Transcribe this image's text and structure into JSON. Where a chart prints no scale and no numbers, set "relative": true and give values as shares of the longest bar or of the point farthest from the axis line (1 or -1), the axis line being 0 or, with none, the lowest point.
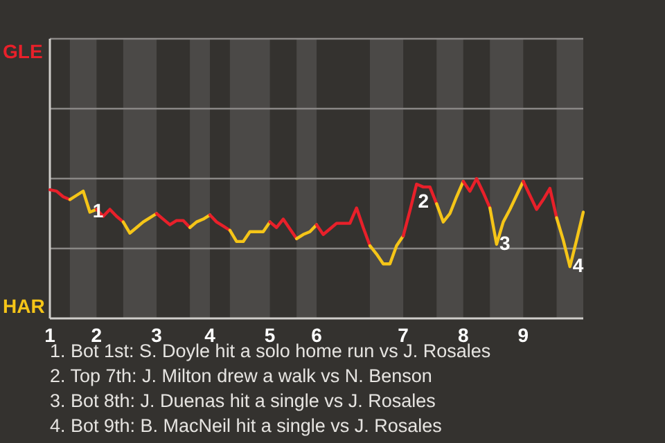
{
  "chart_data": {
    "type": "line",
    "relative": true,
    "marker": "none",
    "categories": [
      "1",
      null,
      null,
      null,
      null,
      null,
      null,
      "2",
      null,
      null,
      null,
      null,
      null,
      null,
      null,
      null,
      "3",
      null,
      null,
      null,
      null,
      null,
      null,
      null,
      "4",
      null,
      null,
      null,
      null,
      null,
      null,
      null,
      null,
      "5",
      null,
      null,
      null,
      null,
      null,
      null,
      "6",
      null,
      null,
      null,
      null,
      null,
      null,
      null,
      null,
      null,
      null,
      null,
      null,
      "7",
      null,
      null,
      null,
      null,
      null,
      null,
      null,
      null,
      "8",
      null,
      null,
      null,
      null,
      null,
      null,
      null,
      null,
      "9",
      null,
      null,
      null,
      null,
      null,
      null,
      null,
      null,
      null
    ],
    "series": [
      {
        "color": "#e8202a",
        "values": [
          0.92,
          0.91,
          0.87,
          0.85,
          null,
          null,
          null,
          null,
          null,
          null,
          null,
          null,
          null,
          null,
          null,
          null,
          null,
          null,
          null,
          null,
          null,
          null,
          null,
          null,
          null,
          null,
          null,
          null,
          null,
          null,
          null,
          null,
          null,
          null,
          null,
          null,
          null,
          null,
          null,
          null,
          null,
          null,
          null,
          null,
          null,
          null,
          null,
          null,
          null,
          null,
          null,
          null,
          null,
          null,
          null,
          null,
          null,
          null,
          null,
          null,
          null,
          null,
          null,
          null,
          null,
          null,
          null,
          null,
          null,
          null,
          null,
          null,
          null,
          null,
          null,
          null,
          null,
          null,
          null,
          null,
          null
        ]
      },
      {
        "color": "#f5c518",
        "values": [
          null,
          null,
          null,
          0.85,
          0.88,
          0.91,
          0.76,
          0.78,
          null,
          null,
          null,
          null,
          null,
          null,
          null,
          null,
          null,
          null,
          null,
          null,
          null,
          null,
          null,
          null,
          null,
          null,
          null,
          null,
          null,
          null,
          null,
          null,
          null,
          null,
          null,
          null,
          null,
          null,
          null,
          null,
          null,
          null,
          null,
          null,
          null,
          null,
          null,
          null,
          null,
          null,
          null,
          null,
          null,
          null,
          null,
          null,
          null,
          null,
          null,
          null,
          null,
          null,
          null,
          null,
          null,
          null,
          null,
          null,
          null,
          null,
          null,
          null,
          null,
          null,
          null,
          null,
          null,
          null,
          null,
          null,
          null
        ]
      },
      {
        "color": "#e8202a",
        "values": [
          null,
          null,
          null,
          null,
          null,
          null,
          null,
          0.78,
          0.73,
          0.78,
          0.73,
          0.69,
          null,
          null,
          null,
          null,
          null,
          null,
          null,
          null,
          null,
          null,
          null,
          null,
          null,
          null,
          null,
          null,
          null,
          null,
          null,
          null,
          null,
          null,
          null,
          null,
          null,
          null,
          null,
          null,
          null,
          null,
          null,
          null,
          null,
          null,
          null,
          null,
          null,
          null,
          null,
          null,
          null,
          null,
          null,
          null,
          null,
          null,
          null,
          null,
          null,
          null,
          null,
          null,
          null,
          null,
          null,
          null,
          null,
          null,
          null,
          null,
          null,
          null,
          null,
          null,
          null,
          null,
          null,
          null,
          null
        ]
      },
      {
        "color": "#f5c518",
        "values": [
          null,
          null,
          null,
          null,
          null,
          null,
          null,
          null,
          null,
          null,
          null,
          0.69,
          0.61,
          0.65,
          0.69,
          0.72,
          0.75,
          null,
          null,
          null,
          null,
          null,
          null,
          null,
          null,
          null,
          null,
          null,
          null,
          null,
          null,
          null,
          null,
          null,
          null,
          null,
          null,
          null,
          null,
          null,
          null,
          null,
          null,
          null,
          null,
          null,
          null,
          null,
          null,
          null,
          null,
          null,
          null,
          null,
          null,
          null,
          null,
          null,
          null,
          null,
          null,
          null,
          null,
          null,
          null,
          null,
          null,
          null,
          null,
          null,
          null,
          null,
          null,
          null,
          null,
          null,
          null,
          null,
          null,
          null,
          null
        ]
      },
      {
        "color": "#e8202a",
        "values": [
          null,
          null,
          null,
          null,
          null,
          null,
          null,
          null,
          null,
          null,
          null,
          null,
          null,
          null,
          null,
          null,
          0.75,
          0.71,
          0.67,
          0.7,
          0.7,
          0.65,
          null,
          null,
          null,
          null,
          null,
          null,
          null,
          null,
          null,
          null,
          null,
          null,
          null,
          null,
          null,
          null,
          null,
          null,
          null,
          null,
          null,
          null,
          null,
          null,
          null,
          null,
          null,
          null,
          null,
          null,
          null,
          null,
          null,
          null,
          null,
          null,
          null,
          null,
          null,
          null,
          null,
          null,
          null,
          null,
          null,
          null,
          null,
          null,
          null,
          null,
          null,
          null,
          null,
          null,
          null,
          null,
          null,
          null,
          null
        ]
      },
      {
        "color": "#f5c518",
        "values": [
          null,
          null,
          null,
          null,
          null,
          null,
          null,
          null,
          null,
          null,
          null,
          null,
          null,
          null,
          null,
          null,
          null,
          null,
          null,
          null,
          null,
          0.65,
          0.69,
          0.71,
          0.74,
          null,
          null,
          null,
          null,
          null,
          null,
          null,
          null,
          null,
          null,
          null,
          null,
          null,
          null,
          null,
          null,
          null,
          null,
          null,
          null,
          null,
          null,
          null,
          null,
          null,
          null,
          null,
          null,
          null,
          null,
          null,
          null,
          null,
          null,
          null,
          null,
          null,
          null,
          null,
          null,
          null,
          null,
          null,
          null,
          null,
          null,
          null,
          null,
          null,
          null,
          null,
          null,
          null,
          null,
          null,
          null
        ]
      },
      {
        "color": "#e8202a",
        "values": [
          null,
          null,
          null,
          null,
          null,
          null,
          null,
          null,
          null,
          null,
          null,
          null,
          null,
          null,
          null,
          null,
          null,
          null,
          null,
          null,
          null,
          null,
          null,
          null,
          0.74,
          0.69,
          0.66,
          0.63,
          null,
          null,
          null,
          null,
          null,
          null,
          null,
          null,
          null,
          null,
          null,
          null,
          null,
          null,
          null,
          null,
          null,
          null,
          null,
          null,
          null,
          null,
          null,
          null,
          null,
          null,
          null,
          null,
          null,
          null,
          null,
          null,
          null,
          null,
          null,
          null,
          null,
          null,
          null,
          null,
          null,
          null,
          null,
          null,
          null,
          null,
          null,
          null,
          null,
          null,
          null,
          null,
          null
        ]
      },
      {
        "color": "#f5c518",
        "values": [
          null,
          null,
          null,
          null,
          null,
          null,
          null,
          null,
          null,
          null,
          null,
          null,
          null,
          null,
          null,
          null,
          null,
          null,
          null,
          null,
          null,
          null,
          null,
          null,
          null,
          null,
          null,
          0.63,
          0.55,
          0.55,
          0.62,
          0.62,
          0.62,
          0.69,
          null,
          null,
          null,
          null,
          null,
          null,
          null,
          null,
          null,
          null,
          null,
          null,
          null,
          null,
          null,
          null,
          null,
          null,
          null,
          null,
          null,
          null,
          null,
          null,
          null,
          null,
          null,
          null,
          null,
          null,
          null,
          null,
          null,
          null,
          null,
          null,
          null,
          null,
          null,
          null,
          null,
          null,
          null,
          null,
          null,
          null,
          null
        ]
      },
      {
        "color": "#e8202a",
        "values": [
          null,
          null,
          null,
          null,
          null,
          null,
          null,
          null,
          null,
          null,
          null,
          null,
          null,
          null,
          null,
          null,
          null,
          null,
          null,
          null,
          null,
          null,
          null,
          null,
          null,
          null,
          null,
          null,
          null,
          null,
          null,
          null,
          null,
          0.69,
          0.65,
          0.71,
          0.64,
          0.57,
          null,
          null,
          null,
          null,
          null,
          null,
          null,
          null,
          null,
          null,
          null,
          null,
          null,
          null,
          null,
          null,
          null,
          null,
          null,
          null,
          null,
          null,
          null,
          null,
          null,
          null,
          null,
          null,
          null,
          null,
          null,
          null,
          null,
          null,
          null,
          null,
          null,
          null,
          null,
          null,
          null,
          null,
          null
        ]
      },
      {
        "color": "#f5c518",
        "values": [
          null,
          null,
          null,
          null,
          null,
          null,
          null,
          null,
          null,
          null,
          null,
          null,
          null,
          null,
          null,
          null,
          null,
          null,
          null,
          null,
          null,
          null,
          null,
          null,
          null,
          null,
          null,
          null,
          null,
          null,
          null,
          null,
          null,
          null,
          null,
          null,
          null,
          0.57,
          0.6,
          0.62,
          0.67,
          null,
          null,
          null,
          null,
          null,
          null,
          null,
          null,
          null,
          null,
          null,
          null,
          null,
          null,
          null,
          null,
          null,
          null,
          null,
          null,
          null,
          null,
          null,
          null,
          null,
          null,
          null,
          null,
          null,
          null,
          null,
          null,
          null,
          null,
          null,
          null,
          null,
          null,
          null,
          null
        ]
      },
      {
        "color": "#e8202a",
        "values": [
          null,
          null,
          null,
          null,
          null,
          null,
          null,
          null,
          null,
          null,
          null,
          null,
          null,
          null,
          null,
          null,
          null,
          null,
          null,
          null,
          null,
          null,
          null,
          null,
          null,
          null,
          null,
          null,
          null,
          null,
          null,
          null,
          null,
          null,
          null,
          null,
          null,
          null,
          null,
          null,
          0.67,
          0.6,
          0.64,
          0.68,
          0.68,
          0.68,
          0.79,
          0.65,
          0.52,
          null,
          null,
          null,
          null,
          null,
          null,
          null,
          null,
          null,
          null,
          null,
          null,
          null,
          null,
          null,
          null,
          null,
          null,
          null,
          null,
          null,
          null,
          null,
          null,
          null,
          null,
          null,
          null,
          null,
          null,
          null,
          null
        ]
      },
      {
        "color": "#f5c518",
        "values": [
          null,
          null,
          null,
          null,
          null,
          null,
          null,
          null,
          null,
          null,
          null,
          null,
          null,
          null,
          null,
          null,
          null,
          null,
          null,
          null,
          null,
          null,
          null,
          null,
          null,
          null,
          null,
          null,
          null,
          null,
          null,
          null,
          null,
          null,
          null,
          null,
          null,
          null,
          null,
          null,
          null,
          null,
          null,
          null,
          null,
          null,
          null,
          null,
          0.52,
          0.46,
          0.39,
          0.39,
          0.52,
          0.59,
          null,
          null,
          null,
          null,
          null,
          null,
          null,
          null,
          null,
          null,
          null,
          null,
          null,
          null,
          null,
          null,
          null,
          null,
          null,
          null,
          null,
          null,
          null,
          null,
          null,
          null,
          null
        ]
      },
      {
        "color": "#e8202a",
        "values": [
          null,
          null,
          null,
          null,
          null,
          null,
          null,
          null,
          null,
          null,
          null,
          null,
          null,
          null,
          null,
          null,
          null,
          null,
          null,
          null,
          null,
          null,
          null,
          null,
          null,
          null,
          null,
          null,
          null,
          null,
          null,
          null,
          null,
          null,
          null,
          null,
          null,
          null,
          null,
          null,
          null,
          null,
          null,
          null,
          null,
          null,
          null,
          null,
          null,
          null,
          null,
          null,
          null,
          0.59,
          0.77,
          0.96,
          0.94,
          0.94,
          0.82,
          null,
          null,
          null,
          null,
          null,
          null,
          null,
          null,
          null,
          null,
          null,
          null,
          null,
          null,
          null,
          null,
          null,
          null,
          null,
          null,
          null,
          null
        ]
      },
      {
        "color": "#f5c518",
        "values": [
          null,
          null,
          null,
          null,
          null,
          null,
          null,
          null,
          null,
          null,
          null,
          null,
          null,
          null,
          null,
          null,
          null,
          null,
          null,
          null,
          null,
          null,
          null,
          null,
          null,
          null,
          null,
          null,
          null,
          null,
          null,
          null,
          null,
          null,
          null,
          null,
          null,
          null,
          null,
          null,
          null,
          null,
          null,
          null,
          null,
          null,
          null,
          null,
          null,
          null,
          null,
          null,
          null,
          null,
          null,
          null,
          null,
          null,
          0.82,
          0.69,
          0.75,
          0.87,
          0.98,
          null,
          null,
          null,
          null,
          null,
          null,
          null,
          null,
          null,
          null,
          null,
          null,
          null,
          null,
          null,
          null,
          null,
          null
        ]
      },
      {
        "color": "#e8202a",
        "values": [
          null,
          null,
          null,
          null,
          null,
          null,
          null,
          null,
          null,
          null,
          null,
          null,
          null,
          null,
          null,
          null,
          null,
          null,
          null,
          null,
          null,
          null,
          null,
          null,
          null,
          null,
          null,
          null,
          null,
          null,
          null,
          null,
          null,
          null,
          null,
          null,
          null,
          null,
          null,
          null,
          null,
          null,
          null,
          null,
          null,
          null,
          null,
          null,
          null,
          null,
          null,
          null,
          null,
          null,
          null,
          null,
          null,
          null,
          null,
          null,
          null,
          null,
          0.98,
          0.91,
          1,
          0.9,
          0.79,
          null,
          null,
          null,
          null,
          null,
          null,
          null,
          null,
          null,
          null,
          null,
          null,
          null,
          null
        ]
      },
      {
        "color": "#f5c518",
        "values": [
          null,
          null,
          null,
          null,
          null,
          null,
          null,
          null,
          null,
          null,
          null,
          null,
          null,
          null,
          null,
          null,
          null,
          null,
          null,
          null,
          null,
          null,
          null,
          null,
          null,
          null,
          null,
          null,
          null,
          null,
          null,
          null,
          null,
          null,
          null,
          null,
          null,
          null,
          null,
          null,
          null,
          null,
          null,
          null,
          null,
          null,
          null,
          null,
          null,
          null,
          null,
          null,
          null,
          null,
          null,
          null,
          null,
          null,
          null,
          null,
          null,
          null,
          null,
          null,
          null,
          null,
          0.79,
          0.53,
          0.69,
          0.78,
          0.88,
          0.98,
          null,
          null,
          null,
          null,
          null,
          null,
          null,
          null,
          null
        ]
      },
      {
        "color": "#e8202a",
        "values": [
          null,
          null,
          null,
          null,
          null,
          null,
          null,
          null,
          null,
          null,
          null,
          null,
          null,
          null,
          null,
          null,
          null,
          null,
          null,
          null,
          null,
          null,
          null,
          null,
          null,
          null,
          null,
          null,
          null,
          null,
          null,
          null,
          null,
          null,
          null,
          null,
          null,
          null,
          null,
          null,
          null,
          null,
          null,
          null,
          null,
          null,
          null,
          null,
          null,
          null,
          null,
          null,
          null,
          null,
          null,
          null,
          null,
          null,
          null,
          null,
          null,
          null,
          null,
          null,
          null,
          null,
          null,
          null,
          null,
          null,
          null,
          0.98,
          0.88,
          0.78,
          0.85,
          0.93,
          0.72,
          null,
          null,
          null,
          null
        ]
      },
      {
        "color": "#f5c518",
        "values": [
          null,
          null,
          null,
          null,
          null,
          null,
          null,
          null,
          null,
          null,
          null,
          null,
          null,
          null,
          null,
          null,
          null,
          null,
          null,
          null,
          null,
          null,
          null,
          null,
          null,
          null,
          null,
          null,
          null,
          null,
          null,
          null,
          null,
          null,
          null,
          null,
          null,
          null,
          null,
          null,
          null,
          null,
          null,
          null,
          null,
          null,
          null,
          null,
          null,
          null,
          null,
          null,
          null,
          null,
          null,
          null,
          null,
          null,
          null,
          null,
          null,
          null,
          null,
          null,
          null,
          null,
          null,
          null,
          null,
          null,
          null,
          null,
          null,
          null,
          null,
          null,
          0.72,
          0.56,
          0.37,
          0.56,
          0.76
        ]
      }
    ],
    "ref_lines": [
      {
        "axis": "y",
        "value": 0.5,
        "color": "#8a8886"
      },
      {
        "axis": "y",
        "value": 1,
        "color": "#8a8886"
      }
    ],
    "annotations": [
      "GLE",
      "HAR",
      {
        "text": "1",
        "y": 0.76
      },
      {
        "text": "2",
        "y": 0.96
      },
      {
        "text": "3",
        "y": 0.53
      },
      {
        "text": "4",
        "y": 0.37
      },
      "1. Bot 1st: S. Doyle hit a solo home run vs J. Rosales",
      "2. Top 7th: J. Milton drew a walk vs N. Benson",
      "3. Bot 8th: J. Duenas hit a single vs J. Rosales",
      "4. Bot 9th: B. MacNeil hit a single vs J. Rosales"
    ]
  }
}
